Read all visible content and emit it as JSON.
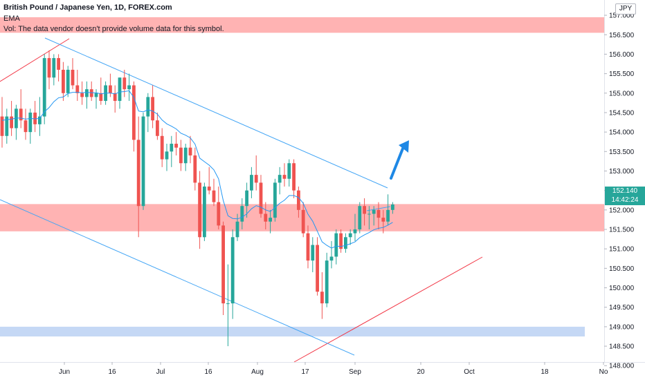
{
  "header": {
    "title": "British Pound / Japanese Yen, 1D, FOREX.com",
    "indicator": "EMA",
    "volume_note": "Vol: The data vendor doesn't provide volume data for this symbol."
  },
  "currency_button": "JPY",
  "last_price": {
    "price": "152.140",
    "countdown": "14:42:24",
    "color": "#26a69a"
  },
  "colors": {
    "up": "#26a69a",
    "down": "#ef5350",
    "ema": "#2196f3",
    "channel": "#42a5f5",
    "trendline": "#f23645",
    "resistance_zone": "#ffb3b3",
    "support_zone": "#c5d8f5",
    "arrow": "#1e88e5"
  },
  "chart_data": {
    "type": "candlestick",
    "symbol": "GBPJPY",
    "y_axis": {
      "ylim": [
        147.85,
        157.25
      ],
      "tick_labels": [
        "148.000",
        "148.500",
        "149.000",
        "149.500",
        "150.000",
        "150.500",
        "151.000",
        "151.500",
        "152.000",
        "152.500",
        "153.000",
        "153.500",
        "154.000",
        "154.500",
        "155.000",
        "155.500",
        "156.000",
        "156.500",
        "157.000"
      ]
    },
    "x_axis": {
      "tick_labels": [
        "Jun",
        "16",
        "Jul",
        "16",
        "Aug",
        "17",
        "Sep",
        "20",
        "Oct",
        "18",
        "No"
      ]
    },
    "candles": [
      {
        "o": 154.4,
        "h": 154.9,
        "l": 153.6,
        "c": 153.9
      },
      {
        "o": 153.9,
        "h": 154.6,
        "l": 153.7,
        "c": 154.4
      },
      {
        "o": 154.4,
        "h": 154.8,
        "l": 153.9,
        "c": 154.1
      },
      {
        "o": 154.1,
        "h": 154.7,
        "l": 153.8,
        "c": 154.6
      },
      {
        "o": 154.6,
        "h": 155.1,
        "l": 154.1,
        "c": 154.3
      },
      {
        "o": 154.3,
        "h": 154.6,
        "l": 153.8,
        "c": 154.0
      },
      {
        "o": 154.0,
        "h": 154.6,
        "l": 153.7,
        "c": 154.5
      },
      {
        "o": 154.5,
        "h": 154.8,
        "l": 154.0,
        "c": 154.2
      },
      {
        "o": 154.2,
        "h": 154.9,
        "l": 153.9,
        "c": 154.4
      },
      {
        "o": 154.4,
        "h": 156.0,
        "l": 154.2,
        "c": 155.9
      },
      {
        "o": 155.9,
        "h": 156.1,
        "l": 155.1,
        "c": 155.4
      },
      {
        "o": 155.4,
        "h": 156.0,
        "l": 155.2,
        "c": 155.9
      },
      {
        "o": 155.9,
        "h": 156.0,
        "l": 155.3,
        "c": 155.6
      },
      {
        "o": 155.6,
        "h": 155.8,
        "l": 154.8,
        "c": 155.0
      },
      {
        "o": 155.0,
        "h": 155.7,
        "l": 154.9,
        "c": 155.6
      },
      {
        "o": 155.6,
        "h": 155.9,
        "l": 155.1,
        "c": 155.2
      },
      {
        "o": 155.2,
        "h": 155.6,
        "l": 154.8,
        "c": 155.0
      },
      {
        "o": 155.0,
        "h": 155.3,
        "l": 154.7,
        "c": 154.9
      },
      {
        "o": 154.9,
        "h": 155.3,
        "l": 154.6,
        "c": 155.1
      },
      {
        "o": 155.1,
        "h": 155.3,
        "l": 154.8,
        "c": 154.9
      },
      {
        "o": 154.9,
        "h": 155.1,
        "l": 154.6,
        "c": 155.0
      },
      {
        "o": 155.0,
        "h": 155.4,
        "l": 154.7,
        "c": 154.8
      },
      {
        "o": 154.8,
        "h": 155.3,
        "l": 154.7,
        "c": 155.2
      },
      {
        "o": 155.2,
        "h": 155.5,
        "l": 154.9,
        "c": 155.0
      },
      {
        "o": 155.0,
        "h": 155.2,
        "l": 154.5,
        "c": 154.8
      },
      {
        "o": 154.8,
        "h": 155.4,
        "l": 154.6,
        "c": 155.4
      },
      {
        "o": 155.4,
        "h": 155.6,
        "l": 154.9,
        "c": 155.1
      },
      {
        "o": 155.1,
        "h": 155.5,
        "l": 154.8,
        "c": 155.2
      },
      {
        "o": 155.2,
        "h": 155.3,
        "l": 153.5,
        "c": 153.8
      },
      {
        "o": 153.8,
        "h": 154.4,
        "l": 151.3,
        "c": 152.1
      },
      {
        "o": 152.1,
        "h": 154.5,
        "l": 152.0,
        "c": 154.4
      },
      {
        "o": 154.4,
        "h": 155.0,
        "l": 154.0,
        "c": 154.9
      },
      {
        "o": 154.9,
        "h": 155.2,
        "l": 154.1,
        "c": 154.3
      },
      {
        "o": 154.3,
        "h": 154.5,
        "l": 153.8,
        "c": 153.9
      },
      {
        "o": 153.9,
        "h": 154.1,
        "l": 153.1,
        "c": 153.3
      },
      {
        "o": 153.3,
        "h": 153.7,
        "l": 153.0,
        "c": 153.5
      },
      {
        "o": 153.5,
        "h": 153.9,
        "l": 153.1,
        "c": 153.7
      },
      {
        "o": 153.7,
        "h": 154.0,
        "l": 153.4,
        "c": 153.6
      },
      {
        "o": 153.6,
        "h": 153.8,
        "l": 153.0,
        "c": 153.2
      },
      {
        "o": 153.2,
        "h": 153.7,
        "l": 153.0,
        "c": 153.6
      },
      {
        "o": 153.6,
        "h": 153.9,
        "l": 153.2,
        "c": 153.4
      },
      {
        "o": 153.4,
        "h": 153.6,
        "l": 152.5,
        "c": 152.7
      },
      {
        "o": 152.7,
        "h": 153.0,
        "l": 151.0,
        "c": 151.3
      },
      {
        "o": 151.3,
        "h": 152.7,
        "l": 151.2,
        "c": 152.6
      },
      {
        "o": 152.6,
        "h": 153.1,
        "l": 152.4,
        "c": 152.5
      },
      {
        "o": 152.5,
        "h": 152.8,
        "l": 152.1,
        "c": 152.2
      },
      {
        "o": 152.2,
        "h": 152.6,
        "l": 151.5,
        "c": 151.6
      },
      {
        "o": 151.6,
        "h": 151.7,
        "l": 149.3,
        "c": 149.6
      },
      {
        "o": 149.6,
        "h": 150.6,
        "l": 148.5,
        "c": 149.6
      },
      {
        "o": 149.6,
        "h": 151.5,
        "l": 149.2,
        "c": 151.3
      },
      {
        "o": 151.3,
        "h": 151.9,
        "l": 151.2,
        "c": 151.7
      },
      {
        "o": 151.7,
        "h": 152.3,
        "l": 151.5,
        "c": 152.1
      },
      {
        "o": 152.1,
        "h": 152.7,
        "l": 151.8,
        "c": 152.5
      },
      {
        "o": 152.5,
        "h": 153.1,
        "l": 152.3,
        "c": 152.9
      },
      {
        "o": 152.9,
        "h": 153.4,
        "l": 152.5,
        "c": 152.7
      },
      {
        "o": 152.7,
        "h": 152.9,
        "l": 151.8,
        "c": 151.9
      },
      {
        "o": 151.9,
        "h": 152.2,
        "l": 151.5,
        "c": 151.7
      },
      {
        "o": 151.7,
        "h": 152.0,
        "l": 151.4,
        "c": 151.8
      },
      {
        "o": 151.8,
        "h": 152.8,
        "l": 151.7,
        "c": 152.7
      },
      {
        "o": 152.7,
        "h": 153.1,
        "l": 152.4,
        "c": 152.9
      },
      {
        "o": 152.9,
        "h": 153.2,
        "l": 152.6,
        "c": 152.8
      },
      {
        "o": 152.8,
        "h": 153.3,
        "l": 152.6,
        "c": 153.2
      },
      {
        "o": 153.2,
        "h": 153.3,
        "l": 152.3,
        "c": 152.5
      },
      {
        "o": 152.5,
        "h": 152.6,
        "l": 151.8,
        "c": 152.0
      },
      {
        "o": 152.0,
        "h": 152.2,
        "l": 151.3,
        "c": 151.4
      },
      {
        "o": 151.4,
        "h": 151.6,
        "l": 150.5,
        "c": 150.7
      },
      {
        "o": 150.7,
        "h": 151.3,
        "l": 150.4,
        "c": 151.1
      },
      {
        "o": 151.1,
        "h": 151.3,
        "l": 149.8,
        "c": 149.9
      },
      {
        "o": 149.9,
        "h": 150.4,
        "l": 149.2,
        "c": 149.6
      },
      {
        "o": 149.6,
        "h": 150.9,
        "l": 149.5,
        "c": 150.7
      },
      {
        "o": 150.7,
        "h": 151.2,
        "l": 150.5,
        "c": 150.8
      },
      {
        "o": 150.8,
        "h": 151.5,
        "l": 150.6,
        "c": 151.4
      },
      {
        "o": 151.4,
        "h": 151.5,
        "l": 150.9,
        "c": 151.0
      },
      {
        "o": 151.0,
        "h": 151.4,
        "l": 150.9,
        "c": 151.3
      },
      {
        "o": 151.3,
        "h": 151.5,
        "l": 151.1,
        "c": 151.4
      },
      {
        "o": 151.4,
        "h": 151.9,
        "l": 151.2,
        "c": 151.5
      },
      {
        "o": 151.5,
        "h": 152.2,
        "l": 151.4,
        "c": 152.1
      },
      {
        "o": 152.1,
        "h": 152.3,
        "l": 151.6,
        "c": 151.9
      },
      {
        "o": 151.9,
        "h": 152.1,
        "l": 151.5,
        "c": 151.9
      },
      {
        "o": 151.9,
        "h": 152.1,
        "l": 151.6,
        "c": 152.0
      },
      {
        "o": 152.0,
        "h": 152.2,
        "l": 151.5,
        "c": 151.8
      },
      {
        "o": 151.8,
        "h": 152.0,
        "l": 151.4,
        "c": 151.7
      },
      {
        "o": 151.7,
        "h": 152.4,
        "l": 151.6,
        "c": 152.0
      },
      {
        "o": 152.0,
        "h": 152.2,
        "l": 151.9,
        "c": 152.14
      }
    ],
    "ema": [
      154.3,
      154.32,
      154.33,
      154.36,
      154.36,
      154.33,
      154.35,
      154.34,
      154.35,
      154.52,
      154.63,
      154.78,
      154.88,
      154.9,
      154.99,
      155.02,
      155.02,
      155.01,
      155.02,
      155.01,
      155.01,
      154.98,
      155.0,
      155.0,
      154.98,
      155.03,
      155.04,
      155.06,
      154.89,
      154.54,
      154.52,
      154.57,
      154.54,
      154.46,
      154.31,
      154.21,
      154.15,
      154.08,
      153.97,
      153.92,
      153.85,
      153.69,
      153.33,
      153.24,
      153.15,
      153.03,
      152.8,
      152.24,
      151.85,
      151.78,
      151.77,
      151.81,
      151.9,
      152.03,
      152.11,
      152.07,
      152.0,
      151.96,
      152.06,
      152.17,
      152.25,
      152.37,
      152.37,
      152.32,
      152.17,
      151.89,
      151.71,
      151.45,
      151.18,
      151.09,
      151.02,
      151.07,
      151.06,
      151.09,
      151.13,
      151.18,
      151.29,
      151.36,
      151.42,
      151.49,
      151.53,
      151.55,
      151.61,
      151.68
    ],
    "annotations": {
      "resistance_zone_top": [
        156.95,
        156.55
      ],
      "demand_zone": [
        152.15,
        151.45
      ],
      "support_zone": [
        149.0,
        148.75
      ]
    }
  }
}
